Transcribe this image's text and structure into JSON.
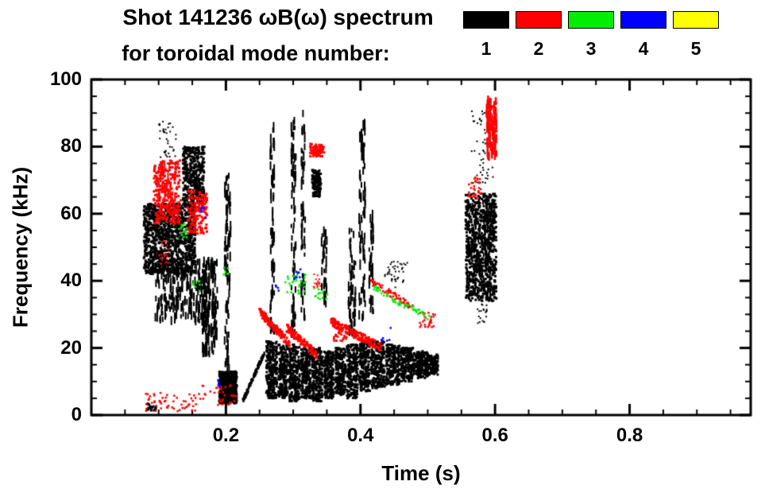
{
  "header": {
    "title_line1": "Shot 141236 ωB(ω) spectrum",
    "title_line2": "for toroidal mode number:"
  },
  "legend": {
    "modes": [
      {
        "label": "1",
        "color": "#000000"
      },
      {
        "label": "2",
        "color": "#ff0000"
      },
      {
        "label": "3",
        "color": "#00ee00"
      },
      {
        "label": "4",
        "color": "#0000ff"
      },
      {
        "label": "5",
        "color": "#ffff00"
      }
    ]
  },
  "chart_data": {
    "type": "scatter",
    "title": "Shot 141236 ωB(ω) spectrum for toroidal mode number: 1 2 3 4 5",
    "xlabel": "Time (s)",
    "ylabel": "Frequency (kHz)",
    "xlim": [
      0,
      0.98
    ],
    "ylim": [
      0,
      100
    ],
    "x_ticks": [
      0.2,
      0.4,
      0.6,
      0.8
    ],
    "x_tick_labels": [
      "0.2",
      "0.4",
      "0.6",
      "0.8"
    ],
    "x_minor_step": 0.05,
    "y_ticks": [
      0,
      20,
      40,
      60,
      80,
      100
    ],
    "y_tick_labels": [
      "0",
      "20",
      "40",
      "60",
      "80",
      "100"
    ],
    "y_minor_step": 5,
    "grid": false,
    "legend_position": "top-right",
    "series": [
      {
        "name": "n=1",
        "color": "#000000",
        "clusters": [
          {
            "kind": "scatter",
            "t": [
              0.078,
              0.155
            ],
            "f": [
              42,
              63
            ],
            "n": 1100,
            "s": 3
          },
          {
            "kind": "vstreak",
            "t": [
              0.095,
              0.175
            ],
            "f": [
              28,
              46
            ],
            "n": 230,
            "s": 2
          },
          {
            "kind": "scatter",
            "t": [
              0.1,
              0.126
            ],
            "f": [
              72,
              88
            ],
            "n": 45,
            "s": 2
          },
          {
            "kind": "scatter",
            "t": [
              0.136,
              0.168
            ],
            "f": [
              62,
              80
            ],
            "n": 380,
            "s": 3
          },
          {
            "kind": "vstreak",
            "t": [
              0.165,
              0.188
            ],
            "f": [
              18,
              46
            ],
            "n": 150,
            "s": 2
          },
          {
            "kind": "scatter",
            "t": [
              0.19,
              0.216
            ],
            "f": [
              3.5,
              13
            ],
            "n": 480,
            "s": 3
          },
          {
            "kind": "vstreak",
            "t": [
              0.198,
              0.207
            ],
            "f": [
              14,
              72
            ],
            "n": 80,
            "s": 2
          },
          {
            "kind": "chirp",
            "t": [
              0.225,
              0.258
            ],
            "f": [
              4,
              19
            ],
            "n": 130,
            "s": 2.5,
            "j": 1.5
          },
          {
            "kind": "scatter",
            "t": [
              0.26,
              0.276
            ],
            "f": [
              5,
              22
            ],
            "n": 230,
            "s": 3
          },
          {
            "kind": "scatter",
            "t": [
              0.278,
              0.292
            ],
            "f": [
              5,
              21
            ],
            "n": 210,
            "s": 3
          },
          {
            "kind": "scatter",
            "t": [
              0.294,
              0.31
            ],
            "f": [
              4,
              21
            ],
            "n": 230,
            "s": 3
          },
          {
            "kind": "scatter",
            "t": [
              0.312,
              0.326
            ],
            "f": [
              5,
              20
            ],
            "n": 210,
            "s": 3
          },
          {
            "kind": "scatter",
            "t": [
              0.328,
              0.344
            ],
            "f": [
              4,
              20
            ],
            "n": 230,
            "s": 3
          },
          {
            "kind": "scatter",
            "t": [
              0.346,
              0.36
            ],
            "f": [
              5,
              19
            ],
            "n": 200,
            "s": 3
          },
          {
            "kind": "scatter",
            "t": [
              0.362,
              0.378
            ],
            "f": [
              6,
              20
            ],
            "n": 210,
            "s": 3
          },
          {
            "kind": "scatter",
            "t": [
              0.38,
              0.396
            ],
            "f": [
              5,
              21
            ],
            "n": 220,
            "s": 3
          },
          {
            "kind": "scatter",
            "t": [
              0.398,
              0.414
            ],
            "f": [
              7,
              22
            ],
            "n": 210,
            "s": 3
          },
          {
            "kind": "scatter",
            "t": [
              0.416,
              0.436
            ],
            "f": [
              8,
              22
            ],
            "n": 230,
            "s": 3
          },
          {
            "kind": "scatter",
            "t": [
              0.438,
              0.458
            ],
            "f": [
              9,
              21
            ],
            "n": 220,
            "s": 3
          },
          {
            "kind": "scatter",
            "t": [
              0.46,
              0.48
            ],
            "f": [
              10,
              20
            ],
            "n": 200,
            "s": 3
          },
          {
            "kind": "scatter",
            "t": [
              0.482,
              0.5
            ],
            "f": [
              11,
              19
            ],
            "n": 170,
            "s": 3
          },
          {
            "kind": "scatter",
            "t": [
              0.5,
              0.515
            ],
            "f": [
              12,
              18
            ],
            "n": 110,
            "s": 3
          },
          {
            "kind": "vstreak",
            "t": [
              0.266,
              0.272
            ],
            "f": [
              24,
              86
            ],
            "n": 60,
            "s": 2
          },
          {
            "kind": "vstreak",
            "t": [
              0.297,
              0.304
            ],
            "f": [
              24,
              88
            ],
            "n": 70,
            "s": 2
          },
          {
            "kind": "vstreak",
            "t": [
              0.312,
              0.318
            ],
            "f": [
              28,
              90
            ],
            "n": 60,
            "s": 2
          },
          {
            "kind": "scatter",
            "t": [
              0.328,
              0.341
            ],
            "f": [
              65,
              73
            ],
            "n": 130,
            "s": 3
          },
          {
            "kind": "vstreak",
            "t": [
              0.342,
              0.35
            ],
            "f": [
              33,
              55
            ],
            "n": 35,
            "s": 2
          },
          {
            "kind": "vstreak",
            "t": [
              0.382,
              0.393
            ],
            "f": [
              24,
              56
            ],
            "n": 55,
            "s": 2
          },
          {
            "kind": "vstreak",
            "t": [
              0.398,
              0.407
            ],
            "f": [
              28,
              87
            ],
            "n": 80,
            "s": 2
          },
          {
            "kind": "vstreak",
            "t": [
              0.413,
              0.419
            ],
            "f": [
              30,
              60
            ],
            "n": 35,
            "s": 2
          },
          {
            "kind": "scatter",
            "t": [
              0.435,
              0.47
            ],
            "f": [
              38,
              46
            ],
            "n": 40,
            "s": 2
          },
          {
            "kind": "scatter",
            "t": [
              0.556,
              0.602
            ],
            "f": [
              34,
              66
            ],
            "n": 700,
            "s": 3
          },
          {
            "kind": "vstreak",
            "t": [
              0.558,
              0.6
            ],
            "f": [
              36,
              64
            ],
            "n": 120,
            "s": 2
          },
          {
            "kind": "scatter",
            "t": [
              0.565,
              0.6
            ],
            "f": [
              69,
              91
            ],
            "n": 55,
            "s": 2
          },
          {
            "kind": "scatter",
            "t": [
              0.574,
              0.588
            ],
            "f": [
              27,
              33
            ],
            "n": 20,
            "s": 2
          },
          {
            "kind": "scatter",
            "t": [
              0.082,
              0.096
            ],
            "f": [
              1,
              3.5
            ],
            "n": 18,
            "s": 3
          }
        ]
      },
      {
        "name": "n=2",
        "color": "#ff0000",
        "clusters": [
          {
            "kind": "scatter",
            "t": [
              0.093,
              0.133
            ],
            "f": [
              57,
              76
            ],
            "n": 230,
            "s": 3
          },
          {
            "kind": "vstreak",
            "t": [
              0.098,
              0.128
            ],
            "f": [
              58,
              74
            ],
            "n": 40,
            "s": 2
          },
          {
            "kind": "scatter",
            "t": [
              0.143,
              0.172
            ],
            "f": [
              54,
              67
            ],
            "n": 150,
            "s": 3
          },
          {
            "kind": "scatter",
            "t": [
              0.1,
              0.115
            ],
            "f": [
              45,
              52
            ],
            "n": 25,
            "s": 2
          },
          {
            "kind": "scatter",
            "t": [
              0.08,
              0.16
            ],
            "f": [
              1,
              7
            ],
            "n": 55,
            "s": 2.5
          },
          {
            "kind": "scatter",
            "t": [
              0.16,
              0.215
            ],
            "f": [
              3,
              9
            ],
            "n": 35,
            "s": 2.5
          },
          {
            "kind": "chirp",
            "t": [
              0.25,
              0.295
            ],
            "f": [
              31,
              21
            ],
            "n": 110,
            "s": 3,
            "j": 2.5
          },
          {
            "kind": "chirp",
            "t": [
              0.29,
              0.335
            ],
            "f": [
              26,
              18
            ],
            "n": 120,
            "s": 3,
            "j": 2.5
          },
          {
            "kind": "scatter",
            "t": [
              0.325,
              0.346
            ],
            "f": [
              77,
              81
            ],
            "n": 70,
            "s": 3
          },
          {
            "kind": "scatter",
            "t": [
              0.33,
              0.341
            ],
            "f": [
              38,
              42
            ],
            "n": 18,
            "s": 2
          },
          {
            "kind": "chirp",
            "t": [
              0.355,
              0.432
            ],
            "f": [
              28,
              20
            ],
            "n": 150,
            "s": 3,
            "j": 2.5
          },
          {
            "kind": "scatter",
            "t": [
              0.36,
              0.38
            ],
            "f": [
              22,
              26
            ],
            "n": 35,
            "s": 2.5
          },
          {
            "kind": "chirp",
            "t": [
              0.415,
              0.478
            ],
            "f": [
              40,
              32
            ],
            "n": 75,
            "s": 2.5,
            "j": 2
          },
          {
            "kind": "scatter",
            "t": [
              0.488,
              0.512
            ],
            "f": [
              26,
              31
            ],
            "n": 28,
            "s": 2.5
          },
          {
            "kind": "scatter",
            "t": [
              0.56,
              0.58
            ],
            "f": [
              64,
              71
            ],
            "n": 30,
            "s": 2.5
          },
          {
            "kind": "vstreak",
            "t": [
              0.586,
              0.602
            ],
            "f": [
              77,
              94
            ],
            "n": 70,
            "s": 2.5
          },
          {
            "kind": "scatter",
            "t": [
              0.59,
              0.602
            ],
            "f": [
              84,
              93
            ],
            "n": 40,
            "s": 3
          }
        ]
      },
      {
        "name": "n=3",
        "color": "#00ee00",
        "clusters": [
          {
            "kind": "scatter",
            "t": [
              0.128,
              0.142
            ],
            "f": [
              52,
              57
            ],
            "n": 14,
            "s": 2.5
          },
          {
            "kind": "scatter",
            "t": [
              0.15,
              0.162
            ],
            "f": [
              36,
              40
            ],
            "n": 8,
            "s": 2.5
          },
          {
            "kind": "scatter",
            "t": [
              0.285,
              0.318
            ],
            "f": [
              36,
              42
            ],
            "n": 30,
            "s": 2.5
          },
          {
            "kind": "scatter",
            "t": [
              0.33,
              0.352
            ],
            "f": [
              34,
              38
            ],
            "n": 14,
            "s": 2.5
          },
          {
            "kind": "chirp",
            "t": [
              0.42,
              0.47
            ],
            "f": [
              38,
              32
            ],
            "n": 32,
            "s": 2.5,
            "j": 1.5
          },
          {
            "kind": "chirp",
            "t": [
              0.466,
              0.502
            ],
            "f": [
              33,
              29
            ],
            "n": 22,
            "s": 2.5,
            "j": 1.5
          },
          {
            "kind": "scatter",
            "t": [
              0.196,
              0.204
            ],
            "f": [
              40,
              44
            ],
            "n": 6,
            "s": 2.5
          }
        ]
      },
      {
        "name": "n=4",
        "color": "#0000ff",
        "clusters": [
          {
            "kind": "scatter",
            "t": [
              0.162,
              0.171
            ],
            "f": [
              58,
              62
            ],
            "n": 6,
            "s": 2.5
          },
          {
            "kind": "scatter",
            "t": [
              0.295,
              0.312
            ],
            "f": [
              40,
              44
            ],
            "n": 8,
            "s": 2.5
          },
          {
            "kind": "scatter",
            "t": [
              0.43,
              0.446
            ],
            "f": [
              22,
              26
            ],
            "n": 6,
            "s": 2.5
          },
          {
            "kind": "scatter",
            "t": [
              0.272,
              0.282
            ],
            "f": [
              36,
              39
            ],
            "n": 4,
            "s": 2.5
          },
          {
            "kind": "scatter",
            "t": [
              0.184,
              0.192
            ],
            "f": [
              8,
              11
            ],
            "n": 4,
            "s": 2.5
          }
        ]
      },
      {
        "name": "n=5",
        "color": "#ffff00",
        "clusters": []
      }
    ]
  }
}
